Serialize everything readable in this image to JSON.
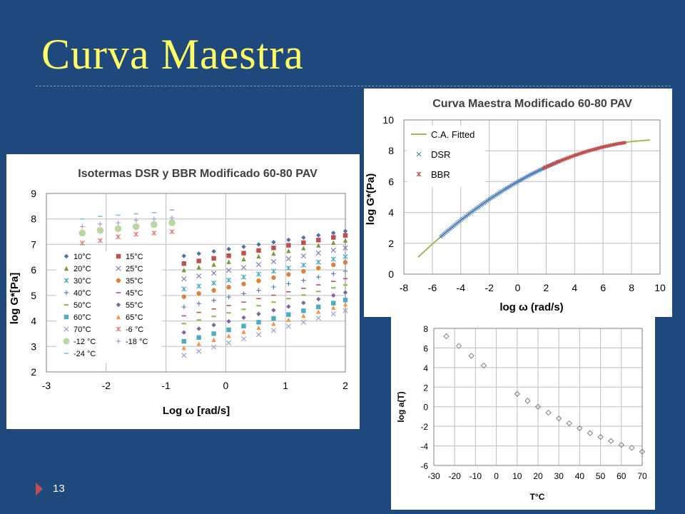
{
  "slide": {
    "title": "Curva Maestra",
    "page_number": "13"
  },
  "chart_data": [
    {
      "type": "scatter",
      "title": "Isotermas DSR y BBR Modificado 60-80 PAV",
      "xlabel": "Log ω [rad/s]",
      "ylabel": "log G*[Pa]",
      "xlim": [
        -3,
        2
      ],
      "ylim": [
        2,
        9
      ],
      "xticks": [
        "-3",
        "-2",
        "-1",
        "0",
        "1",
        "2"
      ],
      "yticks": [
        "2",
        "3",
        "4",
        "5",
        "6",
        "7",
        "8",
        "9"
      ],
      "grid": true,
      "legend": "left",
      "dsr_x": [
        -0.7,
        -0.45,
        -0.2,
        0.05,
        0.3,
        0.55,
        0.8,
        1.05,
        1.3,
        1.55,
        1.8,
        2.0
      ],
      "series": [
        {
          "name": "10°C",
          "marker": "diamond",
          "color": "#4f6fb0",
          "y0": 6.55,
          "slope": 0.36
        },
        {
          "name": "15°C",
          "marker": "square",
          "color": "#c0504d",
          "y0": 6.25,
          "slope": 0.41
        },
        {
          "name": "20°C",
          "marker": "triangle",
          "color": "#7a9a3c",
          "y0": 6.0,
          "slope": 0.43
        },
        {
          "name": "25°C",
          "marker": "x",
          "color": "#8080c0",
          "y0": 5.65,
          "slope": 0.45
        },
        {
          "name": "30°C",
          "marker": "star",
          "color": "#4bacc6",
          "y0": 5.25,
          "slope": 0.47
        },
        {
          "name": "35°C",
          "marker": "circle",
          "color": "#e0813a",
          "y0": 4.95,
          "slope": 0.5
        },
        {
          "name": "40°C",
          "marker": "plus",
          "color": "#6080c0",
          "y0": 4.55,
          "slope": 0.52
        },
        {
          "name": "45°C",
          "marker": "dash",
          "color": "#c0504d",
          "y0": 4.2,
          "slope": 0.54
        },
        {
          "name": "50°C",
          "marker": "bar",
          "color": "#9bbb59",
          "y0": 3.9,
          "slope": 0.56
        },
        {
          "name": "55°C",
          "marker": "diamond",
          "color": "#8064a2",
          "y0": 3.55,
          "slope": 0.58
        },
        {
          "name": "60°C",
          "marker": "square",
          "color": "#4bacc6",
          "y0": 3.2,
          "slope": 0.6
        },
        {
          "name": "65°C",
          "marker": "triangle",
          "color": "#f79646",
          "y0": 2.95,
          "slope": 0.63
        },
        {
          "name": "70°C",
          "marker": "x",
          "color": "#a0a0c8",
          "y0": 2.65,
          "slope": 0.65
        },
        {
          "name": "-6 °C",
          "marker": "star",
          "color": "#e08080",
          "x": [
            -2.4,
            -2.1,
            -1.8,
            -1.5,
            -1.2,
            -0.9
          ],
          "y": [
            7.05,
            7.15,
            7.3,
            7.4,
            7.45,
            7.5
          ]
        },
        {
          "name": "-12 °C",
          "marker": "circle",
          "color": "#b8d8a0",
          "x": [
            -2.4,
            -2.1,
            -1.8,
            -1.5,
            -1.2,
            -0.9
          ],
          "y": [
            7.45,
            7.55,
            7.62,
            7.7,
            7.78,
            7.85
          ]
        },
        {
          "name": "-18 °C",
          "marker": "plus",
          "color": "#a0a0d8",
          "x": [
            -2.4,
            -2.1,
            -1.8,
            -1.5,
            -1.2,
            -0.9
          ],
          "y": [
            7.7,
            7.8,
            7.85,
            7.95,
            8.0,
            8.05
          ]
        },
        {
          "name": "-24 °C",
          "marker": "dash",
          "color": "#7fc0e0",
          "x": [
            -2.4,
            -2.1,
            -1.8,
            -1.5,
            -1.2,
            -0.9
          ],
          "y": [
            8.0,
            8.1,
            8.15,
            8.2,
            8.25,
            8.35
          ]
        }
      ]
    },
    {
      "type": "line",
      "title": "Curva Maestra Modificado 60-80 PAV",
      "xlabel": "log ω (rad/s)",
      "ylabel": "log G*(Pa)",
      "xlim": [
        -8,
        10
      ],
      "ylim": [
        0,
        10
      ],
      "xticks": [
        "-8",
        "-6",
        "-4",
        "-2",
        "0",
        "2",
        "4",
        "6",
        "8",
        "10"
      ],
      "yticks": [
        "0",
        "2",
        "4",
        "6",
        "8",
        "10"
      ],
      "grid": true,
      "legend": "top-left",
      "series": [
        {
          "name": "C.A. Fitted",
          "color": "#9bbb59",
          "x": [
            -7.0,
            -6.0,
            -5.0,
            -4.0,
            -3.0,
            -2.0,
            -1.0,
            0.0,
            1.0,
            2.0,
            3.0,
            4.0,
            5.0,
            6.0,
            7.0,
            8.0,
            9.3
          ],
          "y": [
            1.1,
            1.95,
            2.75,
            3.5,
            4.2,
            4.85,
            5.45,
            6.0,
            6.5,
            6.95,
            7.35,
            7.7,
            8.0,
            8.25,
            8.45,
            8.6,
            8.7
          ]
        },
        {
          "name": "DSR",
          "color": "#4f81bd",
          "x_range": [
            -5.4,
            3.0
          ]
        },
        {
          "name": "BBR",
          "color": "#c0504d",
          "x_range": [
            1.8,
            7.6
          ]
        }
      ]
    },
    {
      "type": "scatter",
      "title": "",
      "xlabel": "T°C",
      "ylabel": "log a(T)",
      "xlim": [
        -30,
        70
      ],
      "ylim": [
        -6,
        8
      ],
      "xticks": [
        "-30",
        "-20",
        "-10",
        "0",
        "10",
        "20",
        "30",
        "40",
        "50",
        "60",
        "70"
      ],
      "yticks": [
        "-6",
        "-4",
        "-2",
        "0",
        "2",
        "4",
        "6",
        "8"
      ],
      "grid": true,
      "series": [
        {
          "name": "",
          "marker": "diamond",
          "color": "#808080",
          "x": [
            -24,
            -18,
            -12,
            -6,
            10,
            15,
            20,
            25,
            30,
            35,
            40,
            45,
            50,
            55,
            60,
            65,
            70
          ],
          "y": [
            7.2,
            6.2,
            5.2,
            4.2,
            1.3,
            0.6,
            0.0,
            -0.6,
            -1.2,
            -1.7,
            -2.2,
            -2.7,
            -3.1,
            -3.5,
            -3.9,
            -4.2,
            -4.6
          ]
        }
      ]
    }
  ]
}
